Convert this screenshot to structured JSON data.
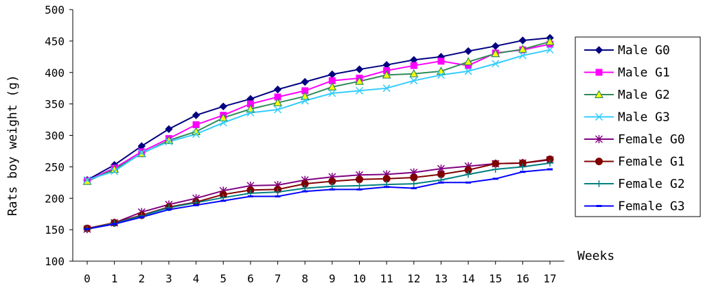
{
  "chart_data": {
    "type": "line",
    "title": "",
    "xlabel": "Weeks",
    "ylabel": "Rats boy weight (g)",
    "ylim": [
      100,
      500
    ],
    "yticks": [
      100,
      150,
      200,
      250,
      300,
      350,
      400,
      450,
      500
    ],
    "x": [
      0,
      1,
      2,
      3,
      4,
      5,
      6,
      7,
      8,
      9,
      10,
      11,
      12,
      13,
      14,
      15,
      16,
      17
    ],
    "grid": false,
    "legend_position": "right",
    "series": [
      {
        "name": "Male G0",
        "color": "#000080",
        "marker": "diamond",
        "values": [
          229,
          253,
          283,
          310,
          332,
          346,
          358,
          373,
          385,
          397,
          405,
          412,
          420,
          425,
          434,
          442,
          451,
          455
        ]
      },
      {
        "name": "Male G1",
        "color": "#FF00FF",
        "marker": "square",
        "values": [
          228,
          248,
          274,
          295,
          317,
          332,
          350,
          361,
          371,
          387,
          391,
          403,
          411,
          418,
          411,
          431,
          436,
          445
        ]
      },
      {
        "name": "Male G2",
        "color": "#2E8B57",
        "marker": "triangle",
        "values": [
          227,
          246,
          271,
          292,
          306,
          328,
          342,
          352,
          362,
          377,
          386,
          396,
          398,
          402,
          417,
          430,
          437,
          449
        ]
      },
      {
        "name": "Male G3",
        "color": "#33CCFF",
        "marker": "x",
        "values": [
          229,
          243,
          272,
          290,
          302,
          320,
          336,
          341,
          355,
          367,
          371,
          375,
          387,
          396,
          402,
          414,
          427,
          436
        ]
      },
      {
        "name": "Female G0",
        "color": "#800080",
        "marker": "star",
        "values": [
          151,
          161,
          178,
          190,
          200,
          212,
          220,
          221,
          229,
          234,
          237,
          238,
          241,
          247,
          251,
          255,
          256,
          261
        ]
      },
      {
        "name": "Female G1",
        "color": "#800000",
        "marker": "circle",
        "values": [
          152,
          161,
          173,
          186,
          194,
          206,
          213,
          214,
          223,
          227,
          230,
          231,
          233,
          238,
          245,
          255,
          256,
          262
        ]
      },
      {
        "name": "Female G2",
        "color": "#008080",
        "marker": "plus",
        "values": [
          151,
          160,
          172,
          185,
          193,
          201,
          208,
          210,
          216,
          219,
          220,
          222,
          223,
          229,
          238,
          246,
          250,
          256
        ]
      },
      {
        "name": "Female G3",
        "color": "#0000FF",
        "marker": "dash",
        "values": [
          151,
          159,
          170,
          182,
          189,
          196,
          203,
          203,
          211,
          214,
          214,
          218,
          216,
          225,
          225,
          231,
          242,
          246
        ]
      }
    ]
  }
}
